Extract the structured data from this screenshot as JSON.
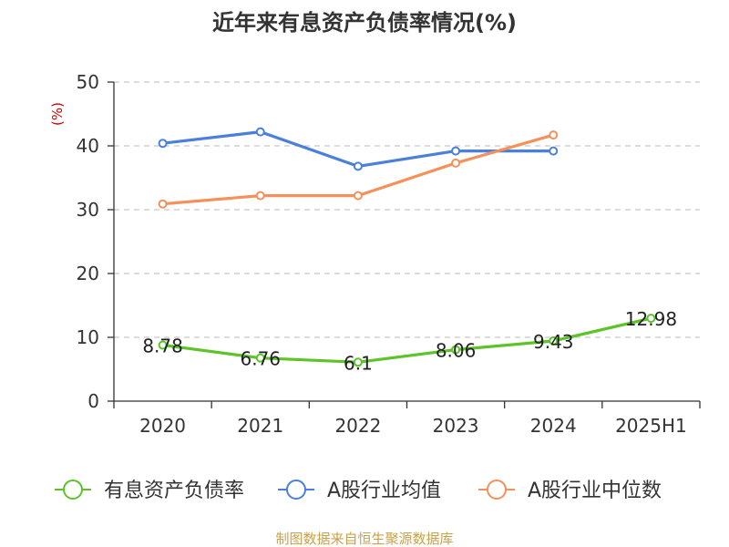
{
  "chart_data": {
    "type": "line",
    "title": "近年来有息资产负债率情况(%)",
    "ylabel": "(%)",
    "xlabel": "",
    "categories": [
      "2020",
      "2021",
      "2022",
      "2023",
      "2024",
      "2025H1"
    ],
    "ylim": [
      0,
      50
    ],
    "yticks": [
      0,
      10,
      20,
      30,
      40,
      50
    ],
    "grid": true,
    "legend_position": "bottom",
    "series": [
      {
        "name": "有息资产负债率",
        "color": "#5cc429",
        "values": [
          8.78,
          6.76,
          6.1,
          8.06,
          9.43,
          12.98
        ],
        "labels": [
          "8.78",
          "6.76",
          "6.1",
          "8.06",
          "9.43",
          "12.98"
        ],
        "show_labels": true
      },
      {
        "name": "A股行业均值",
        "color": "#4a7fdc",
        "values": [
          40.4,
          42.2,
          36.8,
          39.2,
          39.2,
          null
        ],
        "show_labels": false
      },
      {
        "name": "A股行业中位数",
        "color": "#f5905a",
        "values": [
          30.9,
          32.2,
          32.2,
          37.3,
          41.7,
          null
        ],
        "show_labels": false
      }
    ]
  },
  "source": "制图数据来自恒生聚源数据库"
}
